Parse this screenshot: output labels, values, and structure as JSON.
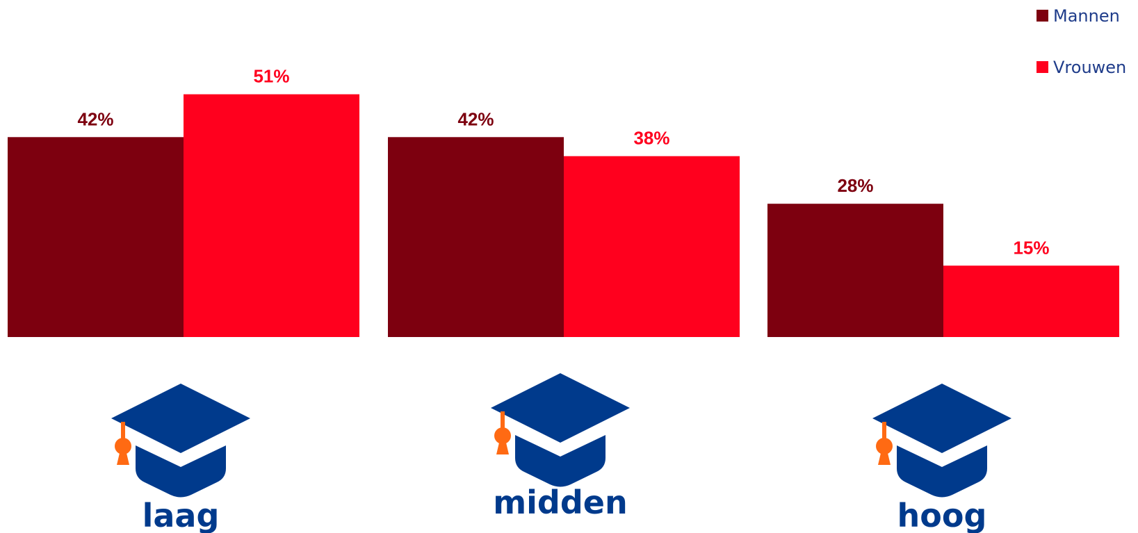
{
  "chart_data": {
    "type": "bar",
    "categories": [
      "laag",
      "midden",
      "hoog"
    ],
    "series": [
      {
        "name": "Mannen",
        "values": [
          42,
          42,
          28
        ],
        "labels": [
          "42%",
          "42%",
          "28%"
        ],
        "color": "#7d000f"
      },
      {
        "name": "Vrouwen",
        "values": [
          51,
          38,
          15
        ],
        "labels": [
          "51%",
          "38%",
          "15%"
        ],
        "color": "#ff001e"
      }
    ],
    "unit": "%",
    "ylim": [
      0,
      100
    ],
    "grid": false,
    "legend_position": "top-right",
    "category_icon": "graduation-cap-icon",
    "colors": {
      "icon_primary": "#003a8c",
      "icon_tassel": "#ff6a13",
      "legend_text": "#1f3c8a"
    }
  }
}
